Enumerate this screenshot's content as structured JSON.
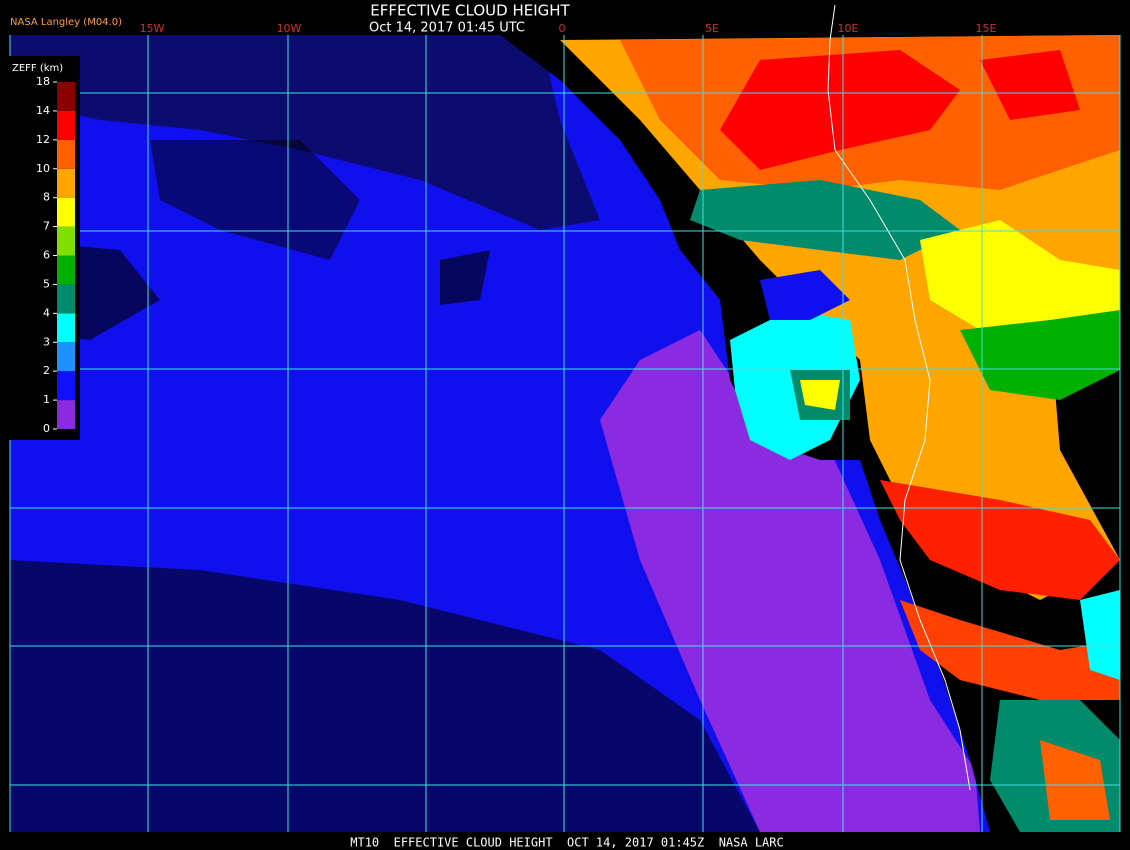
{
  "header": {
    "source": "NASA Langley (M04.0)",
    "title": "EFFECTIVE CLOUD HEIGHT",
    "subtitle": "Oct 14, 2017 01:45 UTC"
  },
  "longitude_labels": [
    "15W",
    "10W",
    "0",
    "5E",
    "10E",
    "15E"
  ],
  "colorbar": {
    "label": "ZEFF (km)",
    "ticks": [
      0,
      1,
      2,
      3,
      4,
      5,
      6,
      7,
      8,
      10,
      12,
      14,
      18
    ],
    "colors": [
      "#8a2be2",
      "#1010ff",
      "#1e90ff",
      "#00ffff",
      "#008b6a",
      "#00b000",
      "#7fe000",
      "#ffff00",
      "#ffa500",
      "#ff6000",
      "#ff0000",
      "#8b0000"
    ]
  },
  "footer": "MT10  EFFECTIVE CLOUD HEIGHT  OCT 14, 2017 01:45Z  NASA LARC"
}
